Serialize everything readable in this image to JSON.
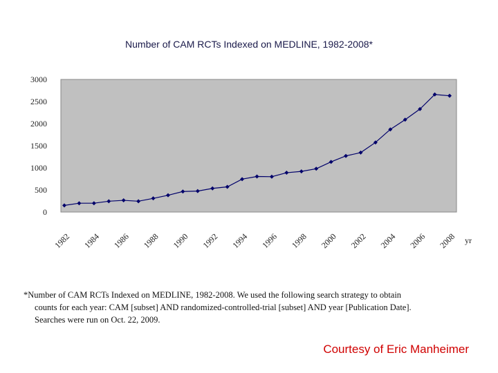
{
  "chart_data": {
    "type": "line",
    "title": "Number of CAM RCTs Indexed on MEDLINE, 1982-2008*",
    "xlabel": "yr",
    "ylabel": "",
    "x": [
      1982,
      1983,
      1984,
      1985,
      1986,
      1987,
      1988,
      1989,
      1990,
      1991,
      1992,
      1993,
      1994,
      1995,
      1996,
      1997,
      1998,
      1999,
      2000,
      2001,
      2002,
      2003,
      2004,
      2005,
      2006,
      2007,
      2008
    ],
    "values": [
      150,
      200,
      200,
      245,
      265,
      245,
      310,
      380,
      465,
      475,
      535,
      570,
      745,
      805,
      800,
      890,
      920,
      980,
      1135,
      1270,
      1345,
      1575,
      1870,
      2090,
      2330,
      2660,
      2630
    ],
    "x_tick_labels": [
      "1982",
      "1984",
      "1986",
      "1988",
      "1990",
      "1992",
      "1994",
      "1996",
      "1998",
      "2000",
      "2002",
      "2004",
      "2006",
      "2008"
    ],
    "y_ticks": [
      0,
      500,
      1000,
      1500,
      2000,
      2500,
      3000
    ],
    "ylim": [
      0,
      3000
    ],
    "grid": false,
    "legend": "none",
    "colors": {
      "line": "#00006a",
      "plot_bg": "#c0c0c0"
    }
  },
  "footnote": {
    "line1": "*Number of CAM RCTs Indexed on MEDLINE, 1982-2008.  We used the following search strategy to obtain",
    "line2": "counts for each year: CAM [subset] AND randomized-controlled-trial [subset] AND year [Publication Date].",
    "line3": "Searches were run on Oct. 22, 2009."
  },
  "credit": "Courtesy of Eric Manheimer"
}
